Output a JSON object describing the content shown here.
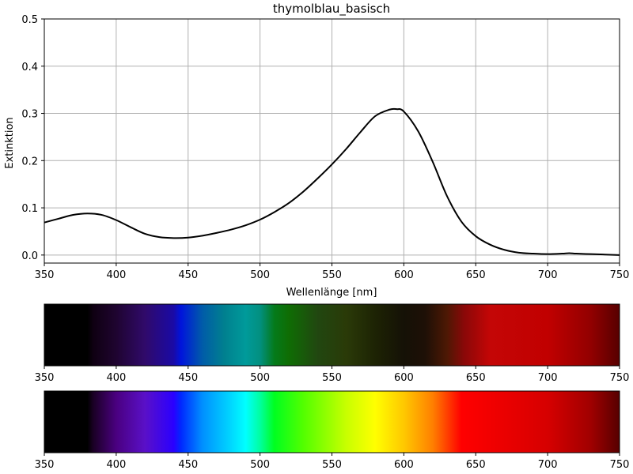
{
  "chart_data": [
    {
      "type": "line",
      "title": "thymolblau_basisch",
      "xlabel": "Wellenlänge [nm]",
      "ylabel": "Extinktion",
      "xlim": [
        350,
        750
      ],
      "ylim": [
        -0.017,
        0.5
      ],
      "x_ticks": [
        350,
        400,
        450,
        500,
        550,
        600,
        650,
        700,
        750
      ],
      "y_ticks": [
        0.0,
        0.1,
        0.2,
        0.3,
        0.4,
        0.5
      ],
      "y_tick_labels": [
        "0.0",
        "0.1",
        "0.2",
        "0.3",
        "0.4",
        "0.5"
      ],
      "grid": true,
      "series": [
        {
          "color": "#000000",
          "x": [
            350,
            360,
            370,
            380,
            390,
            400,
            410,
            420,
            430,
            440,
            450,
            460,
            470,
            480,
            490,
            500,
            510,
            520,
            530,
            540,
            550,
            560,
            570,
            580,
            590,
            595,
            600,
            610,
            620,
            630,
            640,
            650,
            660,
            670,
            680,
            690,
            700,
            710,
            715,
            720,
            730,
            740,
            750
          ],
          "y": [
            0.069,
            0.077,
            0.085,
            0.088,
            0.085,
            0.074,
            0.059,
            0.045,
            0.038,
            0.036,
            0.037,
            0.041,
            0.047,
            0.054,
            0.063,
            0.075,
            0.091,
            0.11,
            0.134,
            0.162,
            0.192,
            0.225,
            0.261,
            0.294,
            0.308,
            0.309,
            0.304,
            0.262,
            0.198,
            0.125,
            0.071,
            0.04,
            0.022,
            0.011,
            0.005,
            0.003,
            0.002,
            0.003,
            0.004,
            0.003,
            0.002,
            0.001,
            0.0
          ]
        }
      ]
    },
    {
      "type": "heatmap",
      "description_free": true,
      "xlim": [
        350,
        750
      ],
      "x_ticks": [
        350,
        400,
        450,
        500,
        550,
        600,
        650,
        700,
        750
      ],
      "stops": [
        {
          "nm": 350,
          "color": "#000000"
        },
        {
          "nm": 380,
          "color": "#000000"
        },
        {
          "nm": 384,
          "color": "#0f0012"
        },
        {
          "nm": 400,
          "color": "#1f0430"
        },
        {
          "nm": 420,
          "color": "#300a6a"
        },
        {
          "nm": 440,
          "color": "#1a0aa6"
        },
        {
          "nm": 445,
          "color": "#0014dc"
        },
        {
          "nm": 460,
          "color": "#005ca8"
        },
        {
          "nm": 475,
          "color": "#00808f"
        },
        {
          "nm": 490,
          "color": "#009a9a"
        },
        {
          "nm": 500,
          "color": "#029080"
        },
        {
          "nm": 510,
          "color": "#047a1a"
        },
        {
          "nm": 520,
          "color": "#0f6d04"
        },
        {
          "nm": 540,
          "color": "#214710"
        },
        {
          "nm": 560,
          "color": "#2a3a08"
        },
        {
          "nm": 580,
          "color": "#1d2304"
        },
        {
          "nm": 600,
          "color": "#151106"
        },
        {
          "nm": 615,
          "color": "#1e1006"
        },
        {
          "nm": 630,
          "color": "#4d1804"
        },
        {
          "nm": 642,
          "color": "#8a0808"
        },
        {
          "nm": 660,
          "color": "#c40606"
        },
        {
          "nm": 700,
          "color": "#c10000"
        },
        {
          "nm": 730,
          "color": "#920000"
        },
        {
          "nm": 750,
          "color": "#570000"
        }
      ]
    },
    {
      "type": "heatmap",
      "xlim": [
        350,
        750
      ],
      "x_ticks": [
        350,
        400,
        450,
        500,
        550,
        600,
        650,
        700,
        750
      ],
      "stops": [
        {
          "nm": 350,
          "color": "#000000"
        },
        {
          "nm": 380,
          "color": "#000000"
        },
        {
          "nm": 384,
          "color": "#1a0024"
        },
        {
          "nm": 400,
          "color": "#4a0080"
        },
        {
          "nm": 420,
          "color": "#5a10c8"
        },
        {
          "nm": 440,
          "color": "#2a00ff"
        },
        {
          "nm": 445,
          "color": "#0028ff"
        },
        {
          "nm": 460,
          "color": "#0090ff"
        },
        {
          "nm": 480,
          "color": "#00d8ff"
        },
        {
          "nm": 490,
          "color": "#00ffff"
        },
        {
          "nm": 500,
          "color": "#00ffa0"
        },
        {
          "nm": 510,
          "color": "#00ff20"
        },
        {
          "nm": 530,
          "color": "#52ff00"
        },
        {
          "nm": 560,
          "color": "#c8ff00"
        },
        {
          "nm": 580,
          "color": "#ffff00"
        },
        {
          "nm": 600,
          "color": "#ffc800"
        },
        {
          "nm": 620,
          "color": "#ff8000"
        },
        {
          "nm": 640,
          "color": "#ff0000"
        },
        {
          "nm": 700,
          "color": "#d60000"
        },
        {
          "nm": 730,
          "color": "#a00000"
        },
        {
          "nm": 750,
          "color": "#560000"
        }
      ]
    }
  ]
}
